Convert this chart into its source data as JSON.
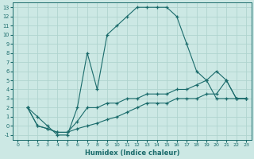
{
  "xlabel": "Humidex (Indice chaleur)",
  "background_color": "#cce8e4",
  "grid_color": "#b0d4cf",
  "line_color": "#1a6b6b",
  "xlim": [
    -0.5,
    23.5
  ],
  "ylim": [
    -1.5,
    13.5
  ],
  "xticks": [
    0,
    1,
    2,
    3,
    4,
    5,
    6,
    7,
    8,
    9,
    10,
    11,
    12,
    13,
    14,
    15,
    16,
    17,
    18,
    19,
    20,
    21,
    22,
    23
  ],
  "yticks": [
    -1,
    0,
    1,
    2,
    3,
    4,
    5,
    6,
    7,
    8,
    9,
    10,
    11,
    12,
    13
  ],
  "curve1_x": [
    1,
    2,
    3,
    4,
    5,
    6,
    7,
    8,
    9,
    10,
    11,
    12,
    13,
    14,
    15,
    16,
    17,
    18,
    19,
    20,
    21,
    22,
    23
  ],
  "curve1_y": [
    2,
    1,
    0,
    -1,
    -1,
    2,
    8,
    4,
    10,
    11,
    12,
    13,
    13,
    13,
    13,
    12,
    9,
    6,
    5,
    3,
    3,
    3,
    3
  ],
  "curve2_x": [
    1,
    2,
    3,
    4,
    5,
    6,
    7,
    8,
    9,
    10,
    11,
    12,
    13,
    14,
    15,
    16,
    17,
    18,
    19,
    20,
    21,
    22,
    23
  ],
  "curve2_y": [
    2,
    0,
    -0.3,
    -0.7,
    -0.7,
    -0.3,
    0,
    0.3,
    0.7,
    1.0,
    1.5,
    2.0,
    2.5,
    2.5,
    2.5,
    3.0,
    3.0,
    3.0,
    3.5,
    3.5,
    5.0,
    3.0,
    3.0
  ],
  "curve3_x": [
    1,
    2,
    3,
    4,
    5,
    6,
    7,
    8,
    9,
    10,
    11,
    12,
    13,
    14,
    15,
    16,
    17,
    18,
    19,
    20,
    21,
    22,
    23
  ],
  "curve3_y": [
    2,
    0,
    -0.3,
    -0.7,
    -0.7,
    0.5,
    2.0,
    2.0,
    2.5,
    2.5,
    3.0,
    3.0,
    3.5,
    3.5,
    3.5,
    4.0,
    4.0,
    4.5,
    5.0,
    6.0,
    5.0,
    3.0,
    3.0
  ]
}
